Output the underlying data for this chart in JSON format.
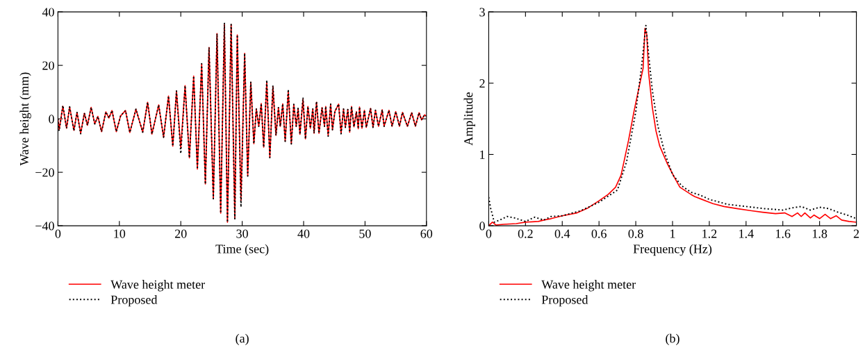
{
  "chart_data": [
    {
      "type": "line",
      "xlabel": "Time (sec)",
      "ylabel": "Wave height (mm)",
      "xlim": [
        0,
        60
      ],
      "ylim": [
        -40,
        40
      ],
      "xticks": [
        0,
        10,
        20,
        30,
        40,
        50,
        60
      ],
      "yticks": [
        {
          "value": -40,
          "label": "−40"
        },
        {
          "value": -20,
          "label": "−20"
        },
        0,
        20,
        40
      ],
      "grid": false,
      "legend": "bottom",
      "annotations": [
        "(a)"
      ],
      "x": [
        0,
        0.2,
        0.8,
        1.4,
        1.9,
        2.6,
        3.1,
        3.7,
        4.3,
        4.8,
        5.4,
        6.0,
        6.5,
        7.1,
        7.8,
        8.3,
        8.8,
        9.5,
        10.2,
        11.0,
        11.7,
        12.7,
        13.8,
        14.6,
        15.3,
        16.4,
        17.2,
        18.0,
        18.7,
        19.3,
        20.0,
        20.7,
        21.4,
        22.1,
        22.7,
        23.4,
        24.0,
        24.6,
        25.3,
        25.9,
        26.5,
        27.1,
        27.6,
        28.2,
        28.8,
        29.2,
        29.8,
        30.4,
        30.9,
        31.4,
        31.9,
        32.3,
        32.7,
        33.1,
        33.5,
        34.0,
        34.5,
        35.0,
        35.5,
        35.9,
        36.2,
        36.6,
        37.0,
        37.5,
        38.0,
        38.4,
        38.8,
        39.1,
        39.4,
        39.9,
        40.3,
        40.7,
        41.1,
        41.5,
        41.7,
        42.1,
        42.5,
        43.0,
        43.4,
        43.6,
        44.0,
        44.4,
        44.7,
        45.1,
        45.7,
        46.1,
        46.5,
        46.8,
        47.2,
        47.5,
        47.8,
        48.2,
        48.6,
        48.9,
        49.1,
        49.5,
        49.9,
        50.2,
        50.9,
        51.3,
        51.7,
        52.2,
        52.8,
        53.1,
        53.9,
        54.4,
        55.0,
        55.6,
        56.1,
        56.9,
        57.6,
        58.2,
        58.8,
        59.2,
        59.7,
        60
      ],
      "series": [
        {
          "name": "Wave height meter",
          "color": "#ff0000",
          "line_style": "solid",
          "values": [
            0,
            -4,
            4.7,
            -3.5,
            4.5,
            -4.3,
            2.4,
            -5.4,
            2.1,
            -2.4,
            4.3,
            -1.9,
            0.9,
            -4.8,
            2.6,
            0.3,
            3.1,
            -4.8,
            1.1,
            3.1,
            -5.1,
            3.6,
            -5.0,
            6.2,
            -5.7,
            5.2,
            -6.9,
            8.5,
            -10.2,
            10.4,
            -11.0,
            12.4,
            -14.6,
            16.0,
            -18.8,
            20.6,
            -24.4,
            26.7,
            -29.9,
            31.9,
            -35.3,
            35.3,
            -38.7,
            35.3,
            -37.4,
            31.4,
            -30.5,
            24.5,
            -21.4,
            13.7,
            -9.3,
            3.7,
            -2.8,
            5.7,
            -10.6,
            13.7,
            -14.5,
            12.0,
            -6.2,
            4.2,
            -2.8,
            5.6,
            -8.4,
            10.3,
            -9.4,
            5.4,
            -2.8,
            3.9,
            -5.8,
            7.3,
            -7.5,
            4.6,
            -3.5,
            3.7,
            -5.4,
            6.2,
            -5.4,
            4.2,
            -2.8,
            4.6,
            -6.2,
            5.5,
            -4.1,
            2.8,
            5.5,
            -5.4,
            3.7,
            -3.2,
            3.5,
            -5.0,
            4.6,
            -3.0,
            2.7,
            -3.7,
            4.4,
            -3.5,
            3.2,
            -3.2,
            3.9,
            -3.2,
            3.2,
            -2.8,
            3.4,
            -2.8,
            3.2,
            -2.8,
            2.7,
            -2.8,
            2.4,
            -2.8,
            2.3,
            -2.8,
            2.3,
            -0.4,
            1.5,
            1
          ]
        },
        {
          "name": "Proposed",
          "color": "#000000",
          "line_style": "dotted",
          "values": [
            0,
            -4.5,
            5,
            -3.5,
            4.5,
            -4.5,
            2.4,
            -5.6,
            2.1,
            -2.4,
            4.3,
            -1.9,
            0.9,
            -4.8,
            2.6,
            0.3,
            3.1,
            -4.8,
            1.1,
            3.1,
            -5.1,
            3.6,
            -5.0,
            6.2,
            -5.7,
            5.2,
            -6.9,
            8.5,
            -10.2,
            10.4,
            -13.0,
            12.4,
            -14.6,
            16.0,
            -18.8,
            20.6,
            -24.4,
            26.7,
            -29.9,
            31.9,
            -35.3,
            36.0,
            -38.7,
            35.3,
            -37.4,
            31.4,
            -33.0,
            24.5,
            -21.4,
            13.7,
            -9.3,
            3.7,
            -2.8,
            5.7,
            -10.6,
            14.5,
            -14.5,
            12.5,
            -6.2,
            4.2,
            -2.8,
            5.6,
            -8.4,
            11.0,
            -9.4,
            5.4,
            -2.8,
            3.9,
            -5.8,
            8.0,
            -7.5,
            4.6,
            -3.5,
            3.7,
            -5.4,
            6.5,
            -5.4,
            4.2,
            -2.8,
            4.6,
            -6.5,
            5.5,
            -4.1,
            2.8,
            5.5,
            -5.6,
            3.7,
            -3.2,
            3.5,
            -5.0,
            4.6,
            -3.0,
            2.7,
            -3.7,
            4.4,
            -3.5,
            3.2,
            -3.2,
            3.9,
            -3.2,
            3.2,
            -2.8,
            3.4,
            -2.8,
            3.2,
            -2.8,
            2.7,
            -2.8,
            2.4,
            -2.8,
            2.3,
            -2.8,
            2.3,
            -0.4,
            1.5,
            1
          ]
        }
      ]
    },
    {
      "type": "line",
      "xlabel": "Frequency (Hz)",
      "ylabel": "Amplitude",
      "xlim": [
        0,
        2
      ],
      "ylim": [
        0,
        3
      ],
      "xticks": [
        0,
        0.2,
        0.4,
        0.6,
        0.8,
        1,
        1.2,
        1.4,
        1.6,
        1.8,
        2
      ],
      "yticks": [
        0,
        1,
        2,
        3
      ],
      "grid": false,
      "legend": "bottom",
      "annotations": [
        "(b)"
      ],
      "series": [
        {
          "name": "Wave height meter",
          "color": "#ff0000",
          "line_style": "solid",
          "x": [
            0,
            0.02,
            0.04,
            0.08,
            0.15,
            0.2,
            0.27,
            0.3,
            0.34,
            0.4,
            0.48,
            0.54,
            0.6,
            0.65,
            0.69,
            0.72,
            0.74,
            0.76,
            0.79,
            0.82,
            0.84,
            0.85,
            0.86,
            0.87,
            0.89,
            0.91,
            0.93,
            0.97,
            1.01,
            1.04,
            1.1,
            1.12,
            1.16,
            1.22,
            1.28,
            1.35,
            1.43,
            1.49,
            1.56,
            1.61,
            1.65,
            1.68,
            1.7,
            1.72,
            1.75,
            1.77,
            1.8,
            1.83,
            1.86,
            1.89,
            1.92,
            1.96,
            2.0
          ],
          "values": [
            0,
            0.05,
            0.01,
            0.02,
            0.03,
            0.05,
            0.06,
            0.08,
            0.1,
            0.14,
            0.18,
            0.25,
            0.35,
            0.44,
            0.54,
            0.71,
            0.95,
            1.19,
            1.6,
            1.97,
            2.21,
            2.77,
            2.68,
            2.14,
            1.66,
            1.33,
            1.12,
            0.88,
            0.68,
            0.54,
            0.44,
            0.41,
            0.37,
            0.31,
            0.27,
            0.24,
            0.21,
            0.19,
            0.17,
            0.18,
            0.13,
            0.18,
            0.13,
            0.18,
            0.11,
            0.15,
            0.1,
            0.16,
            0.1,
            0.14,
            0.08,
            0.06,
            0.05
          ]
        },
        {
          "name": "Proposed",
          "color": "#000000",
          "line_style": "dotted",
          "x": [
            0,
            0.01,
            0.03,
            0.06,
            0.1,
            0.14,
            0.2,
            0.25,
            0.3,
            0.34,
            0.4,
            0.5,
            0.6,
            0.7,
            0.75,
            0.8,
            0.83,
            0.855,
            0.87,
            0.89,
            0.92,
            0.96,
            1.0,
            1.05,
            1.1,
            1.15,
            1.2,
            1.3,
            1.4,
            1.5,
            1.6,
            1.65,
            1.7,
            1.75,
            1.8,
            1.85,
            1.9,
            1.95,
            2.0
          ],
          "values": [
            0.4,
            0.25,
            0.05,
            0.08,
            0.13,
            0.11,
            0.06,
            0.12,
            0.08,
            0.13,
            0.14,
            0.21,
            0.33,
            0.5,
            0.9,
            1.6,
            2.2,
            2.81,
            2.4,
            1.9,
            1.4,
            1.0,
            0.72,
            0.56,
            0.47,
            0.43,
            0.37,
            0.3,
            0.27,
            0.24,
            0.22,
            0.25,
            0.27,
            0.22,
            0.26,
            0.24,
            0.19,
            0.15,
            0.1
          ]
        }
      ]
    }
  ]
}
